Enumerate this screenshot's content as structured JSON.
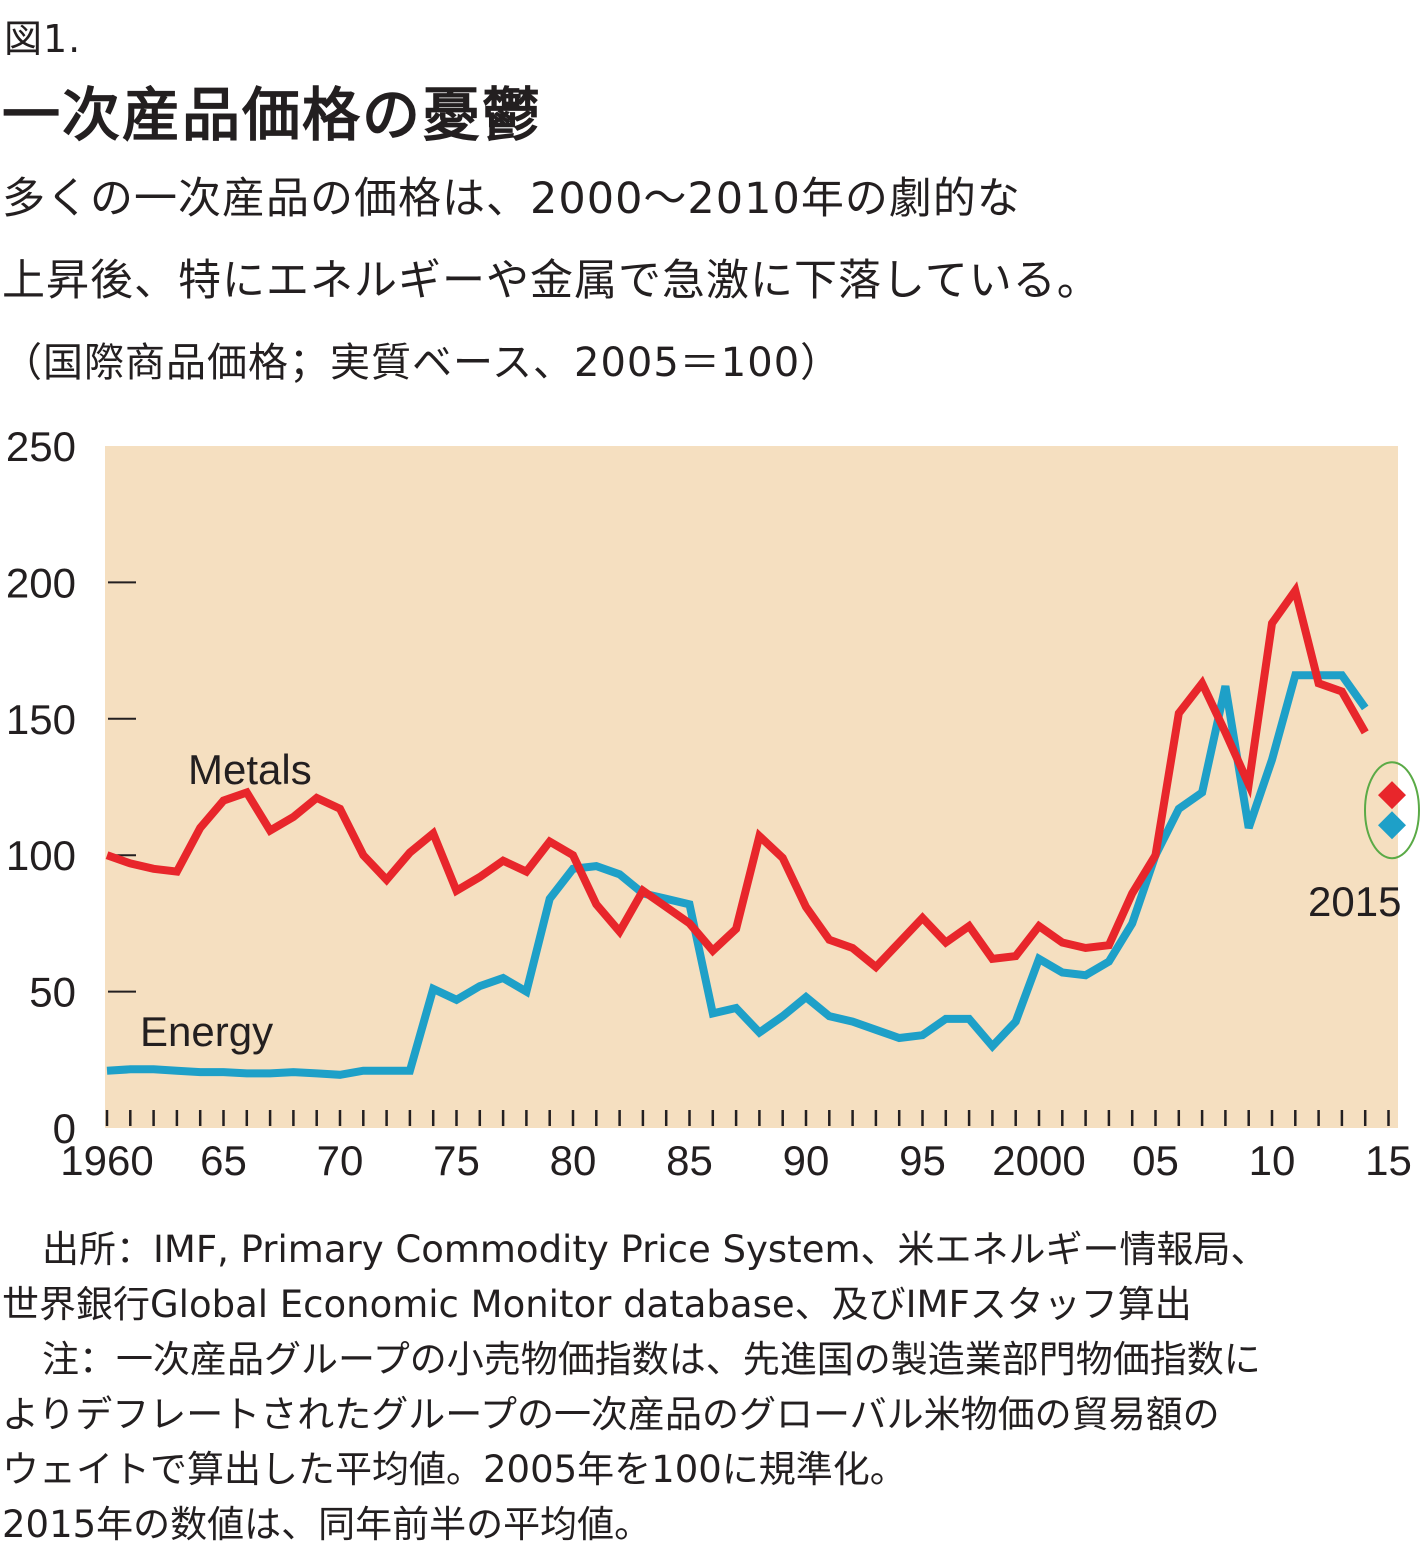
{
  "figure_label": "図1.",
  "title": "一次産品価格の憂鬱",
  "subtitle_lines": [
    "多くの一次産品の価格は、2000〜2010年の劇的な",
    "上昇後、特にエネルギーや金属で急激に下落している。"
  ],
  "unit_note": "（国際商品価格；実質ベース、2005＝100）",
  "notes": {
    "source_line1": "出所：IMF, Primary Commodity Price System、米エネルギー情報局、",
    "source_line2": "世界銀行Global Economic Monitor database、及びIMFスタッフ算出",
    "note_line1": "注：一次産品グループの小売物価指数は、先進国の製造業部門物価指数に",
    "note_line2": "よりデフレートされたグループの一次産品のグローバル米物価の貿易額の",
    "note_line3": "ウェイトで算出した平均値。2005年を100に規準化。",
    "note_line4": "2015年の数値は、同年前半の平均値。"
  },
  "chart_data": {
    "type": "line",
    "title": "一次産品価格の憂鬱",
    "ylim": [
      0,
      250
    ],
    "xlim": [
      1960,
      2015
    ],
    "y_ticks": [
      0,
      50,
      100,
      150,
      200,
      250
    ],
    "x_tick_years": [
      1960,
      1965,
      1970,
      1975,
      1980,
      1985,
      1990,
      1995,
      2000,
      2005,
      2010,
      2015
    ],
    "x_tick_labels": [
      "1960",
      "65",
      "70",
      "75",
      "80",
      "85",
      "90",
      "95",
      "2000",
      "05",
      "10",
      "15"
    ],
    "background": "#f5dfc0",
    "grid": false,
    "series": [
      {
        "name": "Metals",
        "color": "#e8262b",
        "x": [
          1960,
          1961,
          1962,
          1963,
          1964,
          1965,
          1966,
          1967,
          1968,
          1969,
          1970,
          1971,
          1972,
          1973,
          1974,
          1975,
          1976,
          1977,
          1978,
          1979,
          1980,
          1981,
          1982,
          1983,
          1984,
          1985,
          1986,
          1987,
          1988,
          1989,
          1990,
          1991,
          1992,
          1993,
          1994,
          1995,
          1996,
          1997,
          1998,
          1999,
          2000,
          2001,
          2002,
          2003,
          2004,
          2005,
          2006,
          2007,
          2008,
          2009,
          2010,
          2011,
          2012,
          2013,
          2014
        ],
        "y": [
          100,
          97,
          95,
          94,
          110,
          120,
          123,
          109,
          114,
          121,
          117,
          100,
          91,
          101,
          108,
          87,
          92,
          98,
          94,
          105,
          100,
          82,
          72,
          87,
          81,
          75,
          65,
          73,
          107,
          99,
          81,
          69,
          66,
          59,
          68,
          77,
          68,
          74,
          62,
          63,
          74,
          68,
          66,
          67,
          86,
          100,
          152,
          163,
          145,
          126,
          185,
          197,
          163,
          160,
          145
        ],
        "label": "Metals"
      },
      {
        "name": "Energy",
        "color": "#1ea0c8",
        "x": [
          1960,
          1961,
          1962,
          1963,
          1964,
          1965,
          1966,
          1967,
          1968,
          1969,
          1970,
          1971,
          1972,
          1973,
          1974,
          1975,
          1976,
          1977,
          1978,
          1979,
          1980,
          1981,
          1982,
          1983,
          1984,
          1985,
          1986,
          1987,
          1988,
          1989,
          1990,
          1991,
          1992,
          1993,
          1994,
          1995,
          1996,
          1997,
          1998,
          1999,
          2000,
          2001,
          2002,
          2003,
          2004,
          2005,
          2006,
          2007,
          2008,
          2009,
          2010,
          2011,
          2012,
          2013,
          2014
        ],
        "y": [
          21,
          21.5,
          21.5,
          21,
          20.5,
          20.5,
          20,
          20,
          20.5,
          20,
          19.5,
          21,
          21,
          21,
          51,
          47,
          52,
          55,
          50,
          84,
          95,
          96,
          93,
          86,
          84,
          82,
          42,
          44,
          35,
          41,
          48,
          41,
          39,
          36,
          33,
          34,
          40,
          40,
          30,
          39,
          62,
          57,
          56,
          61,
          75,
          100,
          117,
          123,
          162,
          110,
          135,
          166,
          166,
          166,
          154
        ],
        "label": "Energy"
      }
    ],
    "markers_2015": {
      "label": "2015",
      "points": [
        {
          "series": "Metals",
          "x": 2015,
          "y": 122,
          "color": "#e8262b",
          "shape": "diamond"
        },
        {
          "series": "Energy",
          "x": 2015,
          "y": 111,
          "color": "#1ea0c8",
          "shape": "diamond"
        }
      ],
      "highlight_color": "#5aaa46"
    }
  }
}
